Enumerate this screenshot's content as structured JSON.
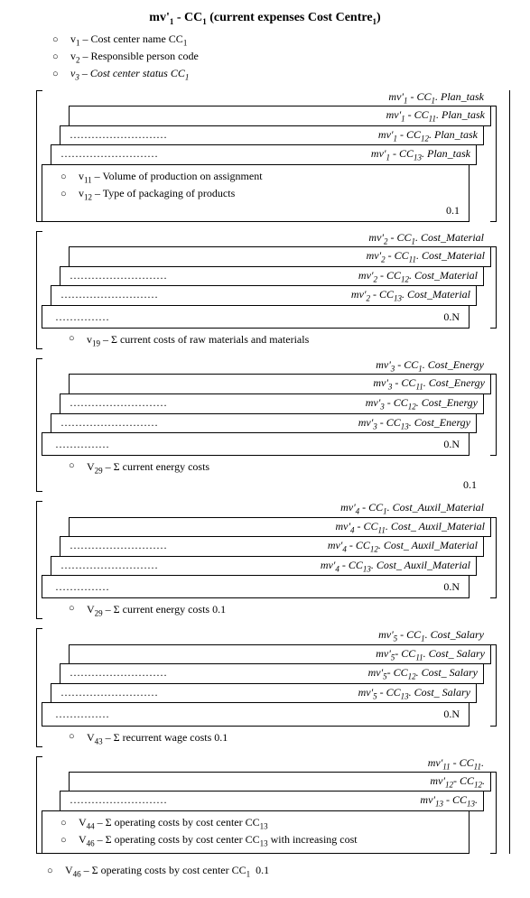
{
  "title_html": "mv'<sub class='sub1'>1</sub> - CC<sub class='sub1'>1</sub> (current expenses Cost Centre<sub class='sub1'>1</sub>)",
  "top_attrs": [
    {
      "html": "v<sub class='sub1'>1</sub> – Cost center name CC<sub class='sub1'>1</sub>",
      "italic": false
    },
    {
      "html": "v<sub class='sub1'>2</sub> – Responsible person code",
      "italic": false
    },
    {
      "html": "<span class='ital'>v<sub class='sub1'>3</sub> – Cost center status CC<sub class='sub1'>1</sub></span>",
      "italic": true
    }
  ],
  "sections": [
    {
      "title_html": "mv'<sub class='sub1'>1</sub> - CC<sub class='sub1'>1</sub>. Plan_task",
      "layers": [
        "mv'<sub class='sub1'>1</sub> - CC<sub class='sub1'>11</sub>. Plan_task",
        "mv'<sub class='sub1'>1</sub> - CC<sub class='sub1'>12</sub>. Plan_task",
        "mv'<sub class='sub1'>1</sub> - CC<sub class='sub1'>13</sub>. Plan_task"
      ],
      "inner_rows": [
        "v<sub class='sub1'>11</sub> – Volume of production on assignment",
        "v<sub class='sub1'>12</sub> – Type of packaging of products"
      ],
      "inner_card": "0.1",
      "inner_dots_row": false,
      "foot_rows": [],
      "foot_card": ""
    },
    {
      "title_html": "mv'<sub class='sub1'>2</sub> - CC<sub class='sub1'>1</sub>. Cost_Material",
      "layers": [
        "mv'<sub class='sub1'>2</sub> - CC<sub class='sub1'>11</sub>. Cost_Material",
        "mv'<sub class='sub1'>2</sub> - CC<sub class='sub1'>12</sub>. Cost_Material",
        "mv'<sub class='sub1'>2</sub> - CC<sub class='sub1'>13</sub>. Cost_Material"
      ],
      "inner_rows": [],
      "inner_card": "0.N",
      "inner_dots_row": true,
      "foot_rows": [
        "v<sub class='sub1'>19</sub> – Σ current costs of raw materials and materials"
      ],
      "foot_card": ""
    },
    {
      "title_html": "mv'<sub class='sub1'>3</sub> - CC<sub class='sub1'>1</sub>. Cost_Energy",
      "layers": [
        "mv'<sub class='sub1'>3</sub> - CC<sub class='sub1'>11</sub>. Cost_Energy",
        "mv'<sub class='sub1'>3</sub> - CC<sub class='sub1'>12</sub>. Cost_Energy",
        "mv'<sub class='sub1'>3</sub> - CC<sub class='sub1'>13</sub>. Cost_Energy"
      ],
      "inner_rows": [],
      "inner_card": "0.N",
      "inner_dots_row": true,
      "foot_rows": [
        "V<sub class='sub1'>29</sub> – Σ current energy costs"
      ],
      "foot_card": "0.1"
    },
    {
      "title_html": "mv'<sub class='sub1'>4</sub> - CC<sub class='sub1'>1</sub>. Cost_Auxil_Material",
      "layers": [
        "mv'<sub class='sub1'>4</sub> - CC<sub class='sub1'>11</sub>. Cost_ Auxil_Material",
        "mv'<sub class='sub1'>4</sub> - CC<sub class='sub1'>12</sub>. Cost_ Auxil_Material",
        "mv'<sub class='sub1'>4</sub> - CC<sub class='sub1'>13</sub>. Cost_ Auxil_Material"
      ],
      "inner_rows": [],
      "inner_card": "0.N",
      "inner_dots_row": true,
      "foot_rows": [
        "V<sub class='sub1'>29</sub> – Σ current energy costs 0.1"
      ],
      "foot_card": ""
    },
    {
      "title_html": "mv'<sub class='sub1'>5</sub> - CC<sub class='sub1'>1</sub>. Cost_Salary",
      "layers": [
        "mv'<sub class='sub1'>5</sub>- CC<sub class='sub1'>11</sub>. Cost_ Salary",
        "mv'<sub class='sub1'>5</sub>- CC<sub class='sub1'>12</sub>. Cost_ Salary",
        "mv'<sub class='sub1'>5</sub> - CC<sub class='sub1'>13</sub>. Cost_ Salary"
      ],
      "inner_rows": [],
      "inner_card": "0.N",
      "inner_dots_row": true,
      "foot_rows": [
        "V<sub class='sub1'>43</sub> – Σ recurrent wage costs 0.1"
      ],
      "foot_card": ""
    },
    {
      "title_html": "mv'<sub class='sub1'>11</sub> - CC<sub class='sub1'>11</sub>.",
      "layers": [
        "mv'<sub class='sub1'>12</sub>- CC<sub class='sub1'>12</sub>.",
        "mv'<sub class='sub1'>13</sub> - CC<sub class='sub1'>13</sub>."
      ],
      "inner_rows": [
        "V<sub class='sub1'>44</sub> – Σ operating costs by cost center CC<sub class='sub1'>13</sub>",
        "V<sub class='sub1'>46</sub> – Σ operating costs by cost center CC<sub class='sub1'>13</sub> with increasing cost"
      ],
      "inner_card": "",
      "inner_dots_row": false,
      "foot_rows": [],
      "foot_card": ""
    }
  ],
  "grand_foot_html": "V<sub class='sub1'>46</sub> – Σ operating costs by cost center CC<sub class='sub1'>1</sub>&nbsp; 0.1",
  "dots": "………………………",
  "dots_short": "……………"
}
